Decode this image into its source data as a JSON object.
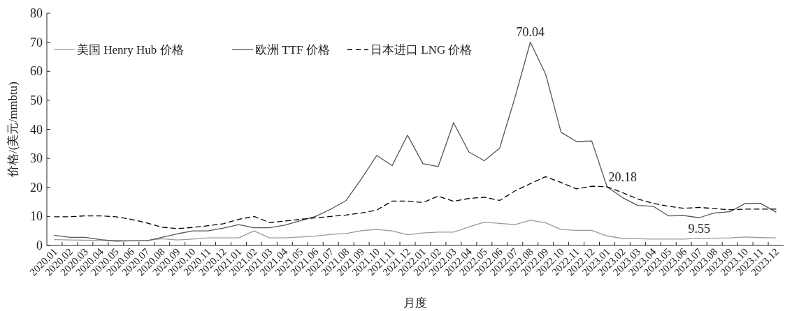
{
  "chart_data": {
    "type": "line",
    "xlabel": "月度",
    "ylabel": "价格/(美元/mmbtu)",
    "categories": [
      "2020.01",
      "2020.02",
      "2020.03",
      "2020.04",
      "2020.05",
      "2020.06",
      "2020.07",
      "2020.08",
      "2020.09",
      "2020.10",
      "2020.11",
      "2020.12",
      "2021.01",
      "2021.02",
      "2021.03",
      "2021.04",
      "2021.05",
      "2021.06",
      "2021.07",
      "2021.08",
      "2021.09",
      "2021.10",
      "2021.11",
      "2021.12",
      "2022.01",
      "2022.02",
      "2022.03",
      "2022.04",
      "2022.05",
      "2022.06",
      "2022.07",
      "2022.08",
      "2022.09",
      "2022.10",
      "2022.11",
      "2022.12",
      "2023.01",
      "2023.02",
      "2023.03",
      "2023.04",
      "2023.05",
      "2023.06",
      "2023.07",
      "2023.08",
      "2023.09",
      "2023.10",
      "2023.11",
      "2023.12"
    ],
    "series": [
      {
        "name": "美国 Henry Hub 价格",
        "color": "#999999",
        "line_style": "solid",
        "values": [
          2.0,
          1.9,
          1.8,
          1.7,
          1.7,
          1.6,
          1.7,
          2.3,
          1.9,
          2.2,
          2.6,
          2.6,
          2.6,
          5.0,
          2.6,
          2.6,
          2.9,
          3.2,
          3.8,
          4.1,
          5.1,
          5.5,
          5.0,
          3.7,
          4.3,
          4.6,
          4.6,
          6.4,
          8.0,
          7.6,
          7.2,
          8.7,
          7.8,
          5.5,
          5.2,
          5.2,
          3.3,
          2.4,
          2.3,
          2.2,
          2.2,
          2.2,
          2.5,
          2.5,
          2.6,
          2.9,
          2.7,
          2.6
        ]
      },
      {
        "name": "欧洲 TTF 价格",
        "color": "#555555",
        "line_style": "solid",
        "values": [
          3.5,
          2.8,
          2.8,
          2.0,
          1.5,
          1.6,
          1.6,
          2.8,
          4.0,
          5.0,
          5.0,
          6.0,
          7.2,
          6.1,
          6.1,
          7.0,
          8.5,
          10,
          12.5,
          15.5,
          23,
          31,
          27.5,
          38,
          28.2,
          27.2,
          42.3,
          32.2,
          29.2,
          33.5,
          51,
          70.04,
          59,
          39,
          35.8,
          36,
          20.18,
          16.5,
          13.8,
          13.5,
          10.2,
          10.3,
          9.55,
          11.2,
          11.6,
          14.5,
          14.5,
          11.5
        ]
      },
      {
        "name": "日本进口 LNG 价格",
        "color": "#000000",
        "line_style": "dashed",
        "values": [
          9.9,
          9.9,
          10.2,
          10.2,
          9.9,
          9.0,
          7.8,
          6.3,
          5.8,
          6.2,
          6.8,
          7.5,
          9.0,
          10.0,
          7.9,
          8.4,
          9.0,
          9.5,
          10.0,
          10.5,
          11.2,
          12.2,
          15.3,
          15.3,
          14.8,
          17.0,
          15.2,
          16.2,
          16.6,
          15.5,
          18.8,
          21.3,
          23.7,
          21.7,
          19.5,
          20.4,
          20.2,
          18.2,
          16.0,
          14.5,
          13.5,
          12.8,
          13.1,
          12.7,
          12.3,
          12.5,
          12.5,
          12.5
        ]
      }
    ],
    "ylim": [
      0,
      80
    ],
    "yticks": [
      0,
      10,
      20,
      30,
      40,
      50,
      60,
      70,
      80
    ],
    "grid": false,
    "legend": "top left",
    "marker": "none",
    "annotations": [
      {
        "text": "70.04",
        "x": "2022.08",
        "y": 70.04
      },
      {
        "text": "20.18",
        "x": "2023.01",
        "y": 20.18
      },
      {
        "text": "9.55",
        "x": "2023.07",
        "y": 9.55
      }
    ]
  }
}
